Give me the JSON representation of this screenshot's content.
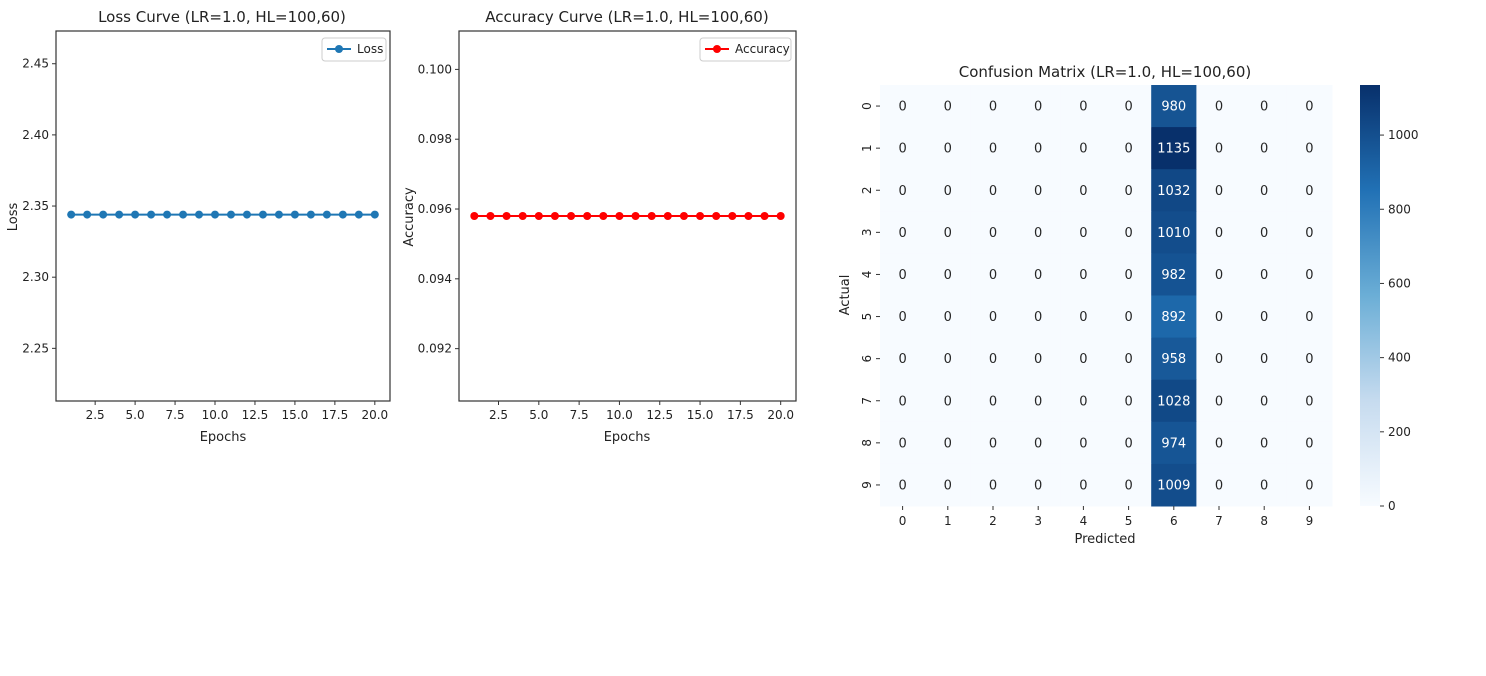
{
  "chart_data": [
    {
      "type": "line",
      "title": "Loss Curve (LR=1.0, HL=100,60)",
      "xlabel": "Epochs",
      "ylabel": "Loss",
      "xlim": [
        0.05,
        20.95
      ],
      "ylim": [
        2.213,
        2.473
      ],
      "xticks": [
        "2.5",
        "5.0",
        "7.5",
        "10.0",
        "12.5",
        "15.0",
        "17.5",
        "20.0"
      ],
      "yticks": [
        "2.25",
        "2.30",
        "2.35",
        "2.40",
        "2.45"
      ],
      "legend_position": "top-right",
      "series": [
        {
          "name": "Loss",
          "color": "#1f77b4",
          "marker": "circle",
          "x": [
            1,
            2,
            3,
            4,
            5,
            6,
            7,
            8,
            9,
            10,
            11,
            12,
            13,
            14,
            15,
            16,
            17,
            18,
            19,
            20
          ],
          "y": [
            2.344,
            2.344,
            2.344,
            2.344,
            2.344,
            2.344,
            2.344,
            2.344,
            2.344,
            2.344,
            2.344,
            2.344,
            2.344,
            2.344,
            2.344,
            2.344,
            2.344,
            2.344,
            2.344,
            2.344
          ]
        }
      ]
    },
    {
      "type": "line",
      "title": "Accuracy Curve (LR=1.0, HL=100,60)",
      "xlabel": "Epochs",
      "ylabel": "Accuracy",
      "xlim": [
        0.05,
        20.95
      ],
      "ylim": [
        0.0905,
        0.1011
      ],
      "xticks": [
        "2.5",
        "5.0",
        "7.5",
        "10.0",
        "12.5",
        "15.0",
        "17.5",
        "20.0"
      ],
      "yticks": [
        "0.092",
        "0.094",
        "0.096",
        "0.098",
        "0.100"
      ],
      "legend_position": "top-right",
      "series": [
        {
          "name": "Accuracy",
          "color": "#ff0000",
          "marker": "circle",
          "x": [
            1,
            2,
            3,
            4,
            5,
            6,
            7,
            8,
            9,
            10,
            11,
            12,
            13,
            14,
            15,
            16,
            17,
            18,
            19,
            20
          ],
          "y": [
            0.0958,
            0.0958,
            0.0958,
            0.0958,
            0.0958,
            0.0958,
            0.0958,
            0.0958,
            0.0958,
            0.0958,
            0.0958,
            0.0958,
            0.0958,
            0.0958,
            0.0958,
            0.0958,
            0.0958,
            0.0958,
            0.0958,
            0.0958
          ]
        }
      ]
    },
    {
      "type": "heatmap",
      "title": "Confusion Matrix (LR=1.0, HL=100,60)",
      "xlabel": "Predicted",
      "ylabel": "Actual",
      "x_categories": [
        "0",
        "1",
        "2",
        "3",
        "4",
        "5",
        "6",
        "7",
        "8",
        "9"
      ],
      "y_categories": [
        "0",
        "1",
        "2",
        "3",
        "4",
        "5",
        "6",
        "7",
        "8",
        "9"
      ],
      "values": [
        [
          0,
          0,
          0,
          0,
          0,
          0,
          980,
          0,
          0,
          0
        ],
        [
          0,
          0,
          0,
          0,
          0,
          0,
          1135,
          0,
          0,
          0
        ],
        [
          0,
          0,
          0,
          0,
          0,
          0,
          1032,
          0,
          0,
          0
        ],
        [
          0,
          0,
          0,
          0,
          0,
          0,
          1010,
          0,
          0,
          0
        ],
        [
          0,
          0,
          0,
          0,
          0,
          0,
          982,
          0,
          0,
          0
        ],
        [
          0,
          0,
          0,
          0,
          0,
          0,
          892,
          0,
          0,
          0
        ],
        [
          0,
          0,
          0,
          0,
          0,
          0,
          958,
          0,
          0,
          0
        ],
        [
          0,
          0,
          0,
          0,
          0,
          0,
          1028,
          0,
          0,
          0
        ],
        [
          0,
          0,
          0,
          0,
          0,
          0,
          974,
          0,
          0,
          0
        ],
        [
          0,
          0,
          0,
          0,
          0,
          0,
          1009,
          0,
          0,
          0
        ]
      ],
      "colormap": "Blues",
      "colorbar_range": [
        0,
        1135
      ],
      "colorbar_ticks": [
        "0",
        "200",
        "400",
        "600",
        "800",
        "1000"
      ]
    }
  ]
}
